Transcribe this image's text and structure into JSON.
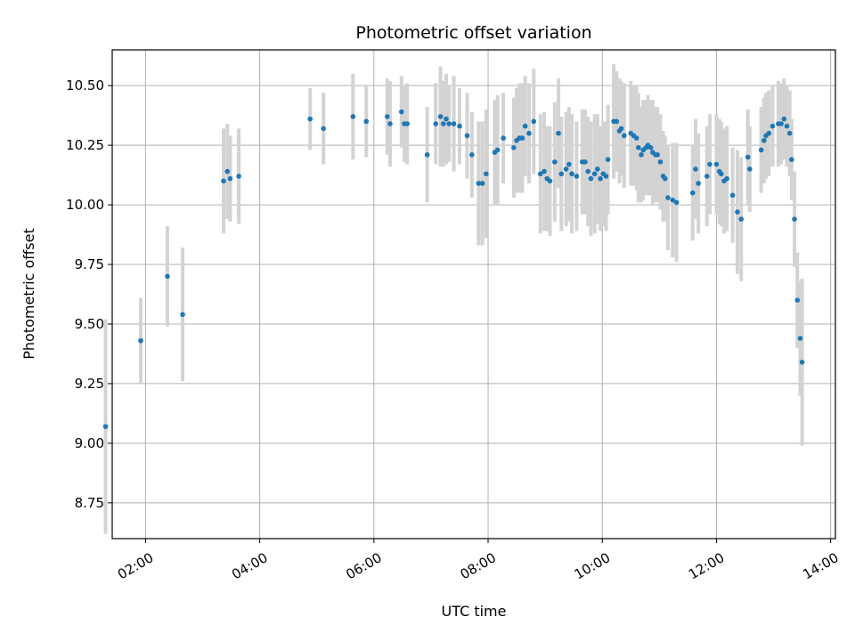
{
  "chart_data": {
    "type": "scatter",
    "title": "Photometric offset variation",
    "xlabel": "UTC time",
    "ylabel": "Photometric offset",
    "xlim": [
      "01:25",
      "14:05"
    ],
    "ylim": [
      8.6,
      10.65
    ],
    "x_ticks": [
      "02:00",
      "04:00",
      "06:00",
      "08:00",
      "10:00",
      "12:00",
      "14:00"
    ],
    "y_ticks": [
      "8.75",
      "9.00",
      "9.25",
      "9.50",
      "9.75",
      "10.00",
      "10.25",
      "10.50"
    ],
    "grid": true,
    "colors": {
      "point": "#1f77b4",
      "errorbar": "#d3d3d3",
      "grid": "#b0b0b0"
    },
    "series": [
      {
        "x": [
          "01:18",
          "01:55",
          "02:23",
          "02:39",
          "03:22",
          "03:26",
          "03:29",
          "03:38",
          "04:53",
          "05:07",
          "05:38",
          "05:52",
          "06:14",
          "06:17",
          "06:29",
          "06:32",
          "06:35",
          "06:56",
          "07:05",
          "07:10",
          "07:13",
          "07:16",
          "07:19",
          "07:24",
          "07:30",
          "07:38",
          "07:43",
          "07:50",
          "07:54",
          "07:58",
          "08:07",
          "08:10",
          "08:16",
          "08:27",
          "08:30",
          "08:33",
          "08:36",
          "08:39",
          "08:43",
          "08:48",
          "08:55",
          "08:59",
          "09:02",
          "09:05",
          "09:10",
          "09:14",
          "09:17",
          "09:22",
          "09:25",
          "09:28",
          "09:33",
          "09:39",
          "09:42",
          "09:45",
          "09:48",
          "09:52",
          "09:55",
          "09:58",
          "10:01",
          "10:04",
          "10:06",
          "10:12",
          "10:15",
          "10:18",
          "10:20",
          "10:23",
          "10:30",
          "10:33",
          "10:36",
          "10:38",
          "10:41",
          "10:43",
          "10:46",
          "10:48",
          "10:51",
          "10:53",
          "10:56",
          "10:58",
          "11:01",
          "11:04",
          "11:06",
          "11:09",
          "11:14",
          "11:18",
          "11:35",
          "11:38",
          "11:41",
          "11:50",
          "11:53",
          "12:00",
          "12:03",
          "12:05",
          "12:08",
          "12:11",
          "12:17",
          "12:22",
          "12:26",
          "12:33",
          "12:35",
          "12:47",
          "12:50",
          "12:52",
          "12:55",
          "12:59",
          "13:05",
          "13:08",
          "13:11",
          "13:14",
          "13:17",
          "13:19",
          "13:22",
          "13:25",
          "13:28",
          "13:30"
        ],
        "y": [
          9.07,
          9.43,
          9.7,
          9.54,
          10.1,
          10.14,
          10.11,
          10.12,
          10.36,
          10.32,
          10.37,
          10.35,
          10.37,
          10.34,
          10.39,
          10.34,
          10.34,
          10.21,
          10.34,
          10.37,
          10.34,
          10.36,
          10.34,
          10.34,
          10.33,
          10.29,
          10.21,
          10.09,
          10.09,
          10.13,
          10.22,
          10.23,
          10.28,
          10.24,
          10.27,
          10.28,
          10.28,
          10.33,
          10.3,
          10.35,
          10.13,
          10.14,
          10.11,
          10.1,
          10.18,
          10.3,
          10.13,
          10.15,
          10.17,
          10.13,
          10.12,
          10.18,
          10.18,
          10.14,
          10.11,
          10.13,
          10.15,
          10.11,
          10.13,
          10.12,
          10.19,
          10.35,
          10.35,
          10.31,
          10.32,
          10.29,
          10.3,
          10.29,
          10.28,
          10.24,
          10.21,
          10.23,
          10.24,
          10.25,
          10.24,
          10.22,
          10.21,
          10.21,
          10.18,
          10.12,
          10.11,
          10.03,
          10.02,
          10.01,
          10.05,
          10.15,
          10.09,
          10.12,
          10.17,
          10.17,
          10.14,
          10.13,
          10.1,
          10.11,
          10.04,
          9.97,
          9.94,
          10.2,
          10.15,
          10.23,
          10.27,
          10.29,
          10.3,
          10.33,
          10.34,
          10.34,
          10.36,
          10.33,
          10.3,
          10.19,
          9.94,
          9.6,
          9.44,
          9.34
        ],
        "err": [
          0.45,
          0.18,
          0.21,
          0.28,
          0.22,
          0.2,
          0.18,
          0.2,
          0.13,
          0.15,
          0.18,
          0.15,
          0.16,
          0.18,
          0.15,
          0.16,
          0.17,
          0.2,
          0.17,
          0.21,
          0.18,
          0.19,
          0.16,
          0.2,
          0.16,
          0.18,
          0.18,
          0.26,
          0.26,
          0.27,
          0.22,
          0.23,
          0.19,
          0.21,
          0.22,
          0.23,
          0.23,
          0.21,
          0.21,
          0.22,
          0.25,
          0.25,
          0.22,
          0.23,
          0.25,
          0.23,
          0.24,
          0.24,
          0.24,
          0.25,
          0.23,
          0.22,
          0.22,
          0.23,
          0.24,
          0.25,
          0.23,
          0.22,
          0.22,
          0.23,
          0.23,
          0.24,
          0.21,
          0.22,
          0.2,
          0.22,
          0.22,
          0.21,
          0.22,
          0.23,
          0.2,
          0.21,
          0.2,
          0.21,
          0.2,
          0.22,
          0.2,
          0.2,
          0.2,
          0.19,
          0.18,
          0.22,
          0.24,
          0.25,
          0.2,
          0.21,
          0.21,
          0.21,
          0.21,
          0.21,
          0.22,
          0.22,
          0.22,
          0.22,
          0.2,
          0.26,
          0.26,
          0.2,
          0.18,
          0.18,
          0.18,
          0.18,
          0.18,
          0.17,
          0.18,
          0.17,
          0.17,
          0.17,
          0.18,
          0.17,
          0.2,
          0.2,
          0.24,
          0.35
        ]
      }
    ]
  }
}
